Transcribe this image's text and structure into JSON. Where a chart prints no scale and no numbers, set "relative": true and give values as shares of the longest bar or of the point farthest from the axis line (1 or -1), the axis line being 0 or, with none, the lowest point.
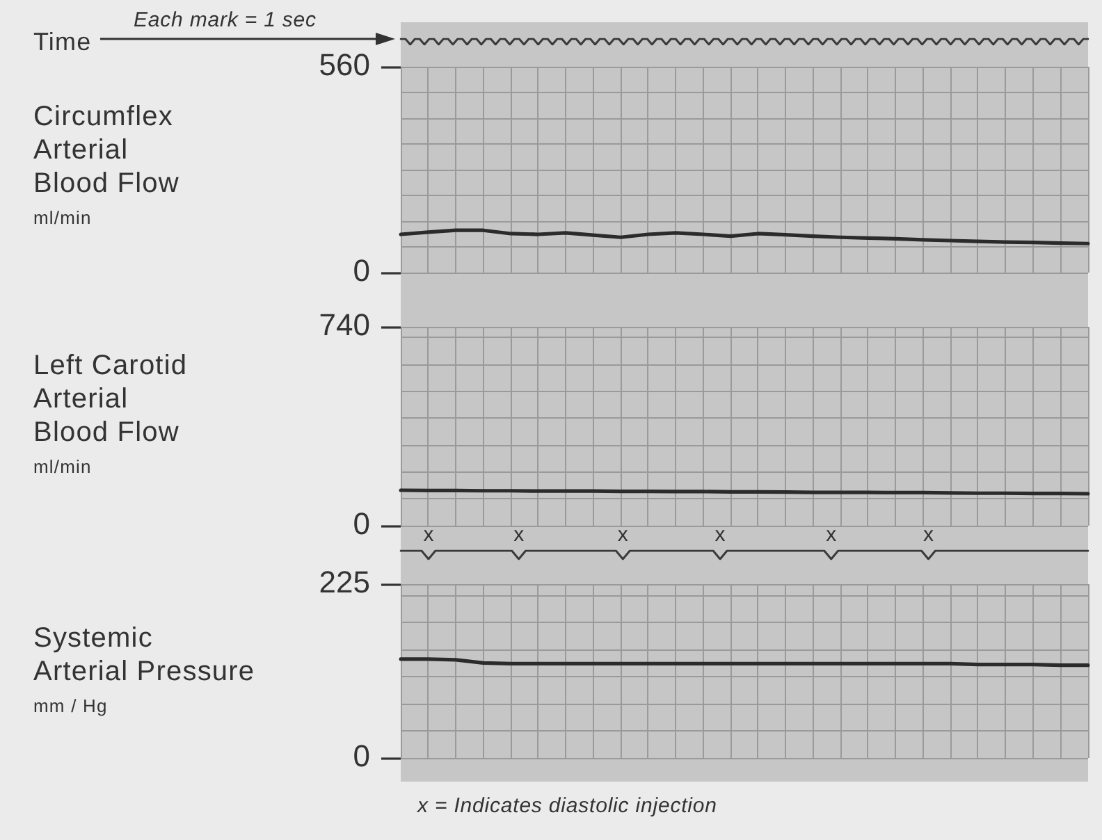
{
  "chart_data": [
    {
      "type": "line",
      "relative": true,
      "ylabel": "Time",
      "annotations": [
        "Each mark = 1 sec"
      ],
      "categories": [
        null,
        null,
        null,
        null,
        null,
        null,
        null,
        null,
        null,
        null,
        null,
        null,
        null,
        null,
        null,
        null,
        null,
        null,
        null,
        null,
        null,
        null,
        null,
        null,
        null,
        null,
        null,
        null,
        null,
        null,
        null,
        null,
        null,
        null,
        null,
        null,
        null,
        null,
        null,
        null,
        null,
        null,
        null,
        null,
        null,
        null,
        null,
        null,
        null,
        null,
        null,
        null,
        null,
        null,
        null,
        null,
        null,
        null,
        null,
        null,
        null,
        null,
        null,
        null,
        null,
        null,
        null,
        null,
        null,
        null,
        null,
        null,
        null,
        null,
        null,
        null,
        null,
        null,
        null,
        null,
        null,
        null,
        null,
        null,
        null,
        null,
        null,
        null,
        null,
        null,
        null,
        null,
        null,
        null,
        null,
        null,
        null,
        null,
        null,
        null,
        null,
        null,
        null,
        null,
        null,
        null,
        null,
        null,
        null,
        null,
        null,
        null,
        null,
        null,
        null,
        null,
        null,
        null,
        null,
        null,
        null,
        null,
        null,
        null,
        null,
        null,
        null,
        null,
        null,
        null,
        null,
        null,
        null,
        null,
        null,
        null,
        null,
        null,
        null,
        null,
        null,
        null,
        null,
        null,
        null,
        null
      ],
      "values": [
        1,
        1,
        0,
        1,
        1,
        0,
        1,
        1,
        0,
        1,
        1,
        0,
        1,
        1,
        0,
        1,
        1,
        0,
        1,
        1,
        0,
        1,
        1,
        0,
        1,
        1,
        0,
        1,
        1,
        0,
        1,
        1,
        0,
        1,
        1,
        0,
        1,
        1,
        0,
        1,
        1,
        0,
        1,
        1,
        0,
        1,
        1,
        0,
        1,
        1,
        0,
        1,
        1,
        0,
        1,
        1,
        0,
        1,
        1,
        0,
        1,
        1,
        0,
        1,
        1,
        0,
        1,
        1,
        0,
        1,
        1,
        0,
        1,
        1,
        0,
        1,
        1,
        0,
        1,
        1,
        0,
        1,
        1,
        0,
        1,
        1,
        0,
        1,
        1,
        0,
        1,
        1,
        0,
        1,
        1,
        0,
        1,
        1,
        0,
        1,
        1,
        0,
        1,
        1,
        0,
        1,
        1,
        0,
        1,
        1,
        0,
        1,
        1,
        0,
        1,
        1,
        0,
        1,
        1,
        0,
        1,
        1,
        0,
        1,
        1,
        0,
        1,
        1,
        0,
        1,
        1,
        0,
        1,
        1,
        0,
        1,
        1,
        0,
        1,
        1,
        0,
        1,
        1,
        0,
        1,
        1
      ],
      "color": "#3a3a3a",
      "tick_labels": false
    },
    {
      "type": "line",
      "ylabel": "Circumflex\nArterial\nBlood Flow\nml/min",
      "categories": [
        null,
        null,
        null,
        null,
        null,
        null,
        null,
        null,
        null,
        null,
        null,
        null,
        null,
        null,
        null,
        null,
        null,
        null,
        null,
        null,
        null,
        null,
        null,
        null,
        null,
        null
      ],
      "values": [
        104,
        110,
        115,
        115,
        106,
        104,
        108,
        102,
        96,
        104,
        108,
        104,
        99,
        106,
        103,
        99,
        96,
        94,
        92,
        89,
        87,
        85,
        83,
        82,
        80,
        79
      ],
      "color": "#2b2b2b",
      "ylim": [
        0,
        560
      ],
      "yticks": [
        0,
        {
          "value": 70,
          "label": null
        },
        {
          "value": 140,
          "label": null
        },
        {
          "value": 210,
          "label": null
        },
        {
          "value": 280,
          "label": null
        },
        {
          "value": 350,
          "label": null
        },
        {
          "value": 420,
          "label": null
        },
        {
          "value": 490,
          "label": null
        },
        560
      ],
      "grid": true,
      "tick_labels": "y"
    },
    {
      "type": "line",
      "ylabel": "Left Carotid\nArterial\nBlood Flow\nml/min",
      "categories": [
        null,
        null,
        null,
        null,
        null,
        null,
        null,
        null,
        null,
        null,
        null,
        null,
        null,
        null,
        null,
        null,
        null,
        null,
        null,
        null,
        null,
        null,
        null,
        null,
        null,
        null
      ],
      "values": [
        132,
        131,
        131,
        130,
        130,
        129,
        129,
        129,
        128,
        128,
        127,
        127,
        126,
        126,
        125,
        124,
        124,
        124,
        123,
        123,
        122,
        121,
        121,
        120,
        120,
        119
      ],
      "color": "#2b2b2b",
      "ylim": [
        0,
        740
      ],
      "yticks": [
        0,
        {
          "value": 100,
          "label": null
        },
        {
          "value": 200,
          "label": null
        },
        {
          "value": 300,
          "label": null
        },
        {
          "value": 400,
          "label": null
        },
        {
          "value": 500,
          "label": null
        },
        {
          "value": 600,
          "label": null
        },
        {
          "value": 700,
          "label": null
        },
        740
      ],
      "grid": true,
      "tick_labels": "y"
    },
    {
      "type": "line",
      "relative": true,
      "categories": [
        null,
        null,
        null,
        null,
        "x",
        null,
        null,
        null,
        null,
        null,
        null,
        null,
        null,
        null,
        null,
        null,
        null,
        "x",
        null,
        null,
        null,
        null,
        null,
        null,
        null,
        null,
        null,
        null,
        null,
        null,
        null,
        null,
        "x",
        null,
        null,
        null,
        null,
        null,
        null,
        null,
        null,
        null,
        null,
        null,
        null,
        null,
        "x",
        null,
        null,
        null,
        null,
        null,
        null,
        null,
        null,
        null,
        null,
        null,
        null,
        null,
        null,
        null,
        "x",
        null,
        null,
        null,
        null,
        null,
        null,
        null,
        null,
        null,
        null,
        null,
        null,
        null,
        "x",
        null,
        null,
        null,
        null,
        null,
        null,
        null,
        null,
        null,
        null,
        null,
        null,
        null,
        null,
        null,
        null,
        null,
        null,
        null,
        null,
        null,
        null,
        null
      ],
      "values": [
        1,
        1,
        1,
        1,
        0,
        1,
        1,
        1,
        1,
        1,
        1,
        1,
        1,
        1,
        1,
        1,
        1,
        0,
        1,
        1,
        1,
        1,
        1,
        1,
        1,
        1,
        1,
        1,
        1,
        1,
        1,
        1,
        0,
        1,
        1,
        1,
        1,
        1,
        1,
        1,
        1,
        1,
        1,
        1,
        1,
        1,
        0,
        1,
        1,
        1,
        1,
        1,
        1,
        1,
        1,
        1,
        1,
        1,
        1,
        1,
        1,
        1,
        0,
        1,
        1,
        1,
        1,
        1,
        1,
        1,
        1,
        1,
        1,
        1,
        1,
        1,
        0,
        1,
        1,
        1,
        1,
        1,
        1,
        1,
        1,
        1,
        1,
        1,
        1,
        1,
        1,
        1,
        1,
        1,
        1,
        1,
        1,
        1,
        1,
        1
      ],
      "color": "#3a3a3a",
      "tick_labels": "x"
    },
    {
      "type": "line",
      "ylabel": "Systemic\nArterial Pressure\nmm / Hg",
      "annotations": [
        "x = Indicates diastolic injection"
      ],
      "categories": [
        null,
        null,
        null,
        null,
        null,
        null,
        null,
        null,
        null,
        null,
        null,
        null,
        null,
        null,
        null,
        null,
        null,
        null,
        null,
        null,
        null,
        null,
        null,
        null,
        null,
        null
      ],
      "values": [
        128,
        128,
        127,
        123,
        122,
        122,
        122,
        122,
        122,
        122,
        122,
        122,
        122,
        122,
        122,
        122,
        122,
        122,
        122,
        122,
        122,
        121,
        121,
        121,
        120,
        120
      ],
      "color": "#2b2b2b",
      "ylim": [
        0,
        225
      ],
      "yticks": [
        0,
        {
          "value": 35,
          "label": null
        },
        {
          "value": 70,
          "label": null
        },
        {
          "value": 105,
          "label": null
        },
        {
          "value": 140,
          "label": null
        },
        {
          "value": 175,
          "label": null
        },
        {
          "value": 210,
          "label": null
        },
        225
      ],
      "grid": true,
      "tick_labels": "y"
    }
  ]
}
